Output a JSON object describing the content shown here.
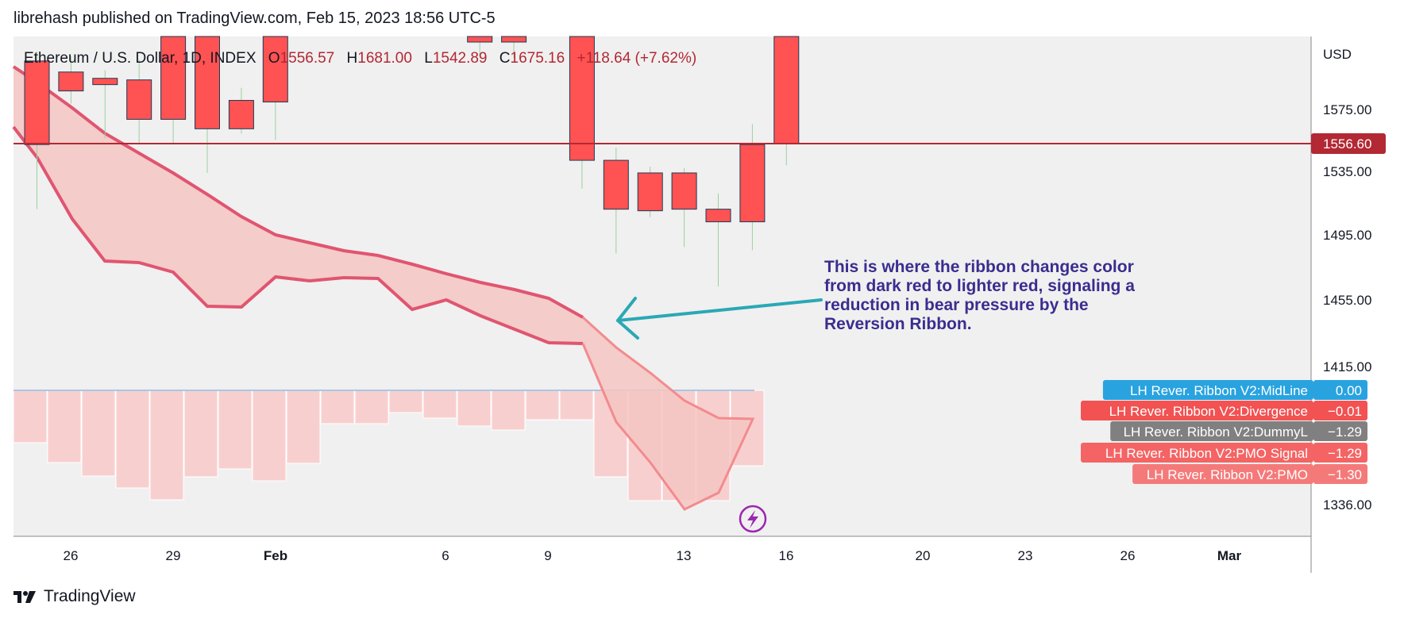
{
  "header": {
    "publisher_line": "librehash published on TradingView.com, Feb 15, 2023 18:56 UTC-5"
  },
  "footer": {
    "brand": "TradingView"
  },
  "colors": {
    "bear": "#ff5252",
    "bull_border": "#1b3a57",
    "wick": "#9bd0a0",
    "ribbon_line": "#e05570",
    "ribbon_fill": "#f5c6c2",
    "ribbon_light": "#f28b8e",
    "hist": "#f8cfcf",
    "midline": "#a7c8e4",
    "price_line": "#b22833",
    "annotation_text": "#3a2d8f",
    "arrow": "#2aa8b5"
  },
  "chart_data": {
    "type": "candlestick",
    "symbol_line": {
      "symbol": "Ethereum / U.S. Dollar, 1D, INDEX",
      "o_label": "O",
      "o": "1556.57",
      "h_label": "H",
      "h": "1681.00",
      "l_label": "L",
      "l": "1542.89",
      "c_label": "C",
      "c": "1675.16",
      "change": "+118.64 (+7.62%)"
    },
    "currency": "USD",
    "y_ticks": [
      "1575.00",
      "1535.00",
      "1495.00",
      "1455.00",
      "1415.00",
      "1336.00"
    ],
    "price_label": "1556.60",
    "price_level": 1556.6,
    "x_ticks": [
      {
        "label": "26",
        "bold": false
      },
      {
        "label": "29",
        "bold": false
      },
      {
        "label": "Feb",
        "bold": true
      },
      {
        "label": "6",
        "bold": false
      },
      {
        "label": "9",
        "bold": false
      },
      {
        "label": "13",
        "bold": false
      },
      {
        "label": "16",
        "bold": false
      },
      {
        "label": "20",
        "bold": false
      },
      {
        "label": "23",
        "bold": false
      },
      {
        "label": "26",
        "bold": false
      },
      {
        "label": "Mar",
        "bold": true
      }
    ],
    "candles": [
      {
        "date": "Jan 24",
        "open": 1609,
        "close": 1556,
        "high": 1615,
        "low": 1515
      },
      {
        "date": "Jan 25",
        "open": 1602,
        "close": 1590,
        "high": 1612,
        "low": 1582
      },
      {
        "date": "Jan 26",
        "open": 1598,
        "close": 1594,
        "high": 1603,
        "low": 1560
      },
      {
        "date": "Jan 27",
        "open": 1597,
        "close": 1572,
        "high": 1610,
        "low": 1556
      },
      {
        "date": "Jan 28",
        "open": 1648,
        "close": 1572,
        "high": 1656,
        "low": 1556
      },
      {
        "date": "Jan 29",
        "open": 1666,
        "close": 1566,
        "high": 1673,
        "low": 1538
      },
      {
        "date": "Jan 30",
        "open": 1584,
        "close": 1566,
        "high": 1592,
        "low": 1563
      },
      {
        "date": "Jan 31",
        "open": 1633,
        "close": 1583,
        "high": 1641,
        "low": 1559
      },
      {
        "date": "Feb 6",
        "open": 1632,
        "close": 1621,
        "high": 1636,
        "low": 1612
      },
      {
        "date": "Feb 7",
        "open": 1631,
        "close": 1621,
        "high": 1636,
        "low": 1611
      },
      {
        "date": "Feb 9",
        "open": 1667,
        "close": 1546,
        "high": 1675,
        "low": 1528
      },
      {
        "date": "Feb 10",
        "open": 1546,
        "close": 1515,
        "high": 1554,
        "low": 1487
      },
      {
        "date": "Feb 11",
        "open": 1538,
        "close": 1514,
        "high": 1542,
        "low": 1510
      },
      {
        "date": "Feb 12",
        "open": 1538,
        "close": 1515,
        "high": 1541,
        "low": 1491
      },
      {
        "date": "Feb 13",
        "open": 1515,
        "close": 1507,
        "high": 1525,
        "low": 1466
      },
      {
        "date": "Feb 14",
        "open": 1507,
        "close": 1556,
        "high": 1569,
        "low": 1489
      },
      {
        "date": "Feb 15",
        "open": 1556.57,
        "close": 1675.16,
        "high": 1681,
        "low": 1542.89
      }
    ],
    "indicator_legend": [
      {
        "name": "LH Rever. Ribbon V2:MidLine",
        "value": "0.00",
        "color": "#29a3e0"
      },
      {
        "name": "LH Rever. Ribbon V2:Divergence",
        "value": "−0.01",
        "color": "#f25252"
      },
      {
        "name": "LH Rever. Ribbon V2:DummyL",
        "value": "−1.29",
        "color": "#808080"
      },
      {
        "name": "LH Rever. Ribbon V2:PMO Signal",
        "value": "−1.29",
        "color": "#f46464"
      },
      {
        "name": "LH Rever. Ribbon V2:PMO",
        "value": "−1.30",
        "color": "#f47a7a"
      }
    ],
    "midline_value": 0.0
  },
  "annotation": {
    "lines": [
      "This is where the ribbon changes color",
      "from dark red to lighter red, signaling a",
      "reduction in bear pressure by the",
      "Reversion Ribbon."
    ]
  }
}
